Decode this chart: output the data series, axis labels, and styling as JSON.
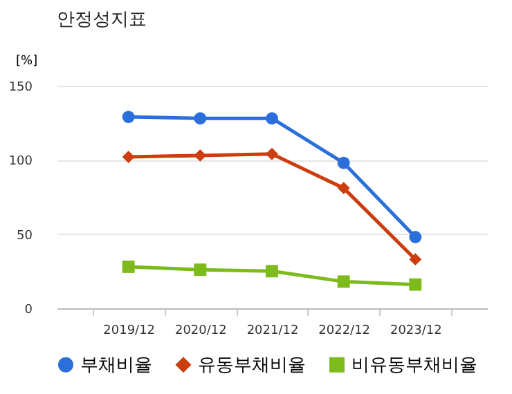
{
  "chart_data": {
    "type": "line",
    "title": "안정성지표",
    "ylabel": "[%]",
    "categories": [
      "2019/12",
      "2020/12",
      "2021/12",
      "2022/12",
      "2023/12"
    ],
    "series": [
      {
        "name": "부채비율",
        "color": "#2a6fdb",
        "marker": "circle",
        "values": [
          129,
          128,
          128,
          98,
          48
        ]
      },
      {
        "name": "유동부채비율",
        "color": "#cc3d0f",
        "marker": "diamond",
        "values": [
          102,
          103,
          104,
          81,
          33
        ]
      },
      {
        "name": "비유동부채비율",
        "color": "#7dbb1c",
        "marker": "square",
        "values": [
          28,
          26,
          25,
          18,
          16
        ]
      }
    ],
    "ylim": [
      0,
      150
    ],
    "yticks": [
      0,
      50,
      100,
      150
    ],
    "grid": "y",
    "legend": "bottom"
  }
}
